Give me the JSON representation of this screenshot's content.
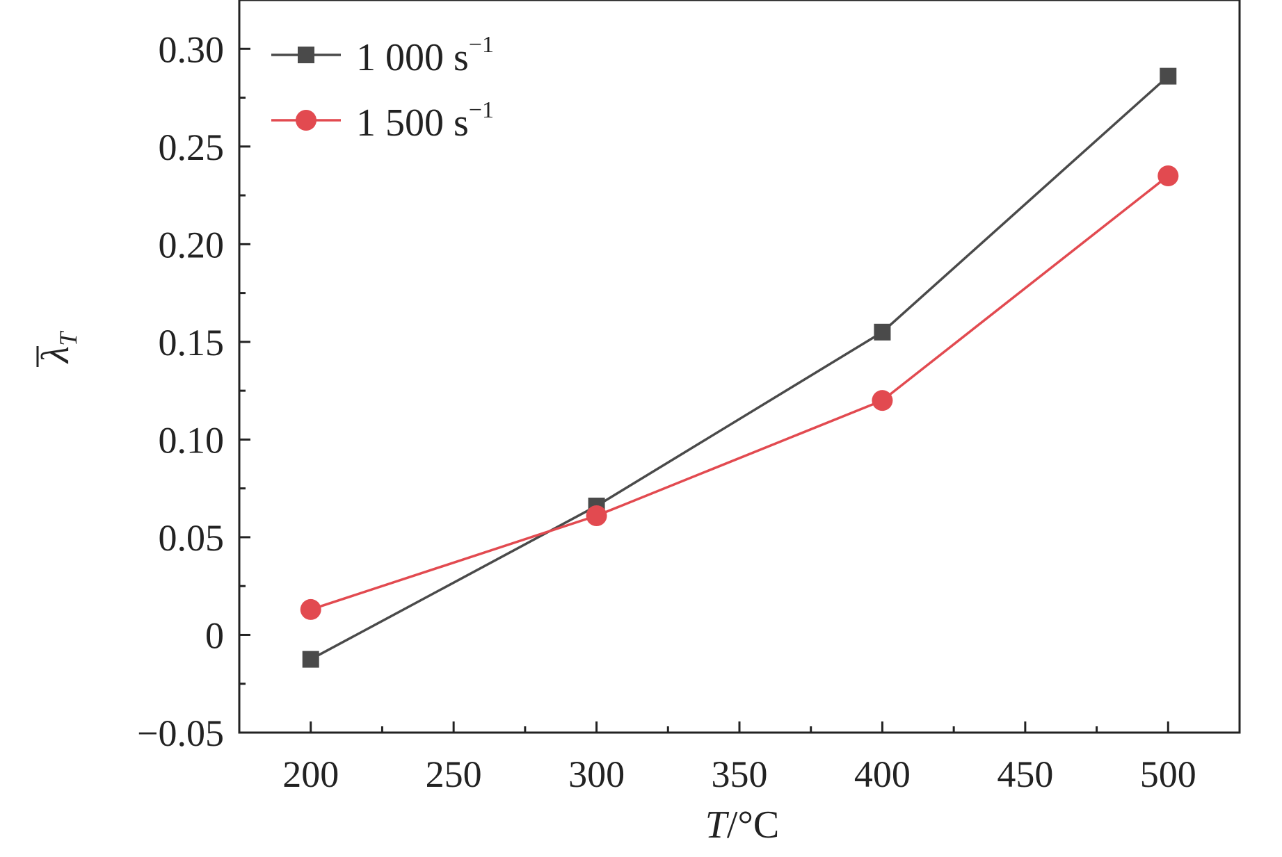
{
  "chart_data": {
    "type": "line",
    "xlabel": {
      "var": "T",
      "unit": "/°C"
    },
    "ylabel": {
      "var": "λ",
      "sub": "T"
    },
    "xlim": [
      175,
      525
    ],
    "ylim": [
      -0.05,
      0.325
    ],
    "x_ticks": [
      200,
      250,
      300,
      350,
      400,
      450,
      500
    ],
    "x_tick_labels": [
      "200",
      "250",
      "300",
      "350",
      "400",
      "450",
      "500"
    ],
    "y_ticks": [
      -0.05,
      0,
      0.05,
      0.1,
      0.15,
      0.2,
      0.25,
      0.3
    ],
    "y_tick_labels": [
      "−0.05",
      "0",
      "0.05",
      "0.10",
      "0.15",
      "0.20",
      "0.25",
      "0.30"
    ],
    "x": [
      200,
      300,
      400,
      500
    ],
    "series": [
      {
        "name": "1 000 s",
        "name_sup": "−1",
        "values": [
          -0.0125,
          0.066,
          0.155,
          0.286
        ],
        "color": "#4a4a4a",
        "marker": "square"
      },
      {
        "name": "1 500 s",
        "name_sup": "−1",
        "values": [
          0.013,
          0.061,
          0.12,
          0.235
        ],
        "color": "#e24a50",
        "marker": "circle"
      }
    ],
    "legend_position": "top-left",
    "grid": false
  }
}
